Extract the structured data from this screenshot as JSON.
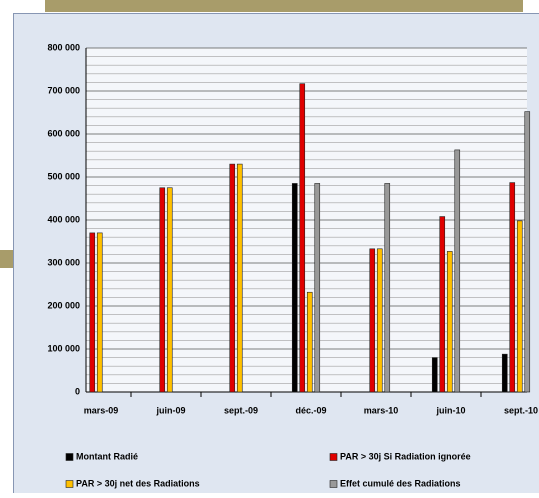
{
  "chart_data": {
    "type": "bar",
    "categories": [
      "mars-09",
      "juin-09",
      "sept.-09",
      "déc.-09",
      "mars-10",
      "juin-10",
      "sept.-10"
    ],
    "series": [
      {
        "name": "Montant Radié",
        "color": "#000000",
        "values": [
          null,
          null,
          null,
          485000,
          null,
          80000,
          88000
        ]
      },
      {
        "name": "PAR > 30j Si Radiation ignorée",
        "color": "#e00000",
        "values": [
          370000,
          475000,
          530000,
          717000,
          333000,
          408000,
          487000
        ]
      },
      {
        "name": "PAR > 30j net des Radiations",
        "color": "#ffc000",
        "values": [
          370000,
          475000,
          530000,
          232000,
          333000,
          327000,
          398000
        ]
      },
      {
        "name": "Effet cumulé des Radiations",
        "color": "#999999",
        "values": [
          null,
          null,
          null,
          485000,
          485000,
          563000,
          652000
        ]
      }
    ],
    "ylim": [
      0,
      800000
    ],
    "yticks": [
      {
        "value": 0,
        "label": "0"
      },
      {
        "value": 100000,
        "label": "100 000"
      },
      {
        "value": 200000,
        "label": "200 000"
      },
      {
        "value": 300000,
        "label": "300 000"
      },
      {
        "value": 400000,
        "label": "400 000"
      },
      {
        "value": 500000,
        "label": "500 000"
      },
      {
        "value": 600000,
        "label": "600 000"
      },
      {
        "value": 700000,
        "label": "700 000"
      },
      {
        "value": 800000,
        "label": "800 000"
      }
    ],
    "minor_yticks": [
      20000,
      40000,
      60000,
      80000,
      120000,
      140000,
      160000,
      180000,
      220000,
      240000,
      260000,
      280000,
      320000,
      340000,
      360000,
      380000,
      420000,
      440000,
      460000,
      480000,
      520000,
      540000,
      560000,
      580000,
      620000,
      640000,
      660000,
      680000,
      720000,
      740000,
      760000,
      780000
    ],
    "grid": true
  }
}
